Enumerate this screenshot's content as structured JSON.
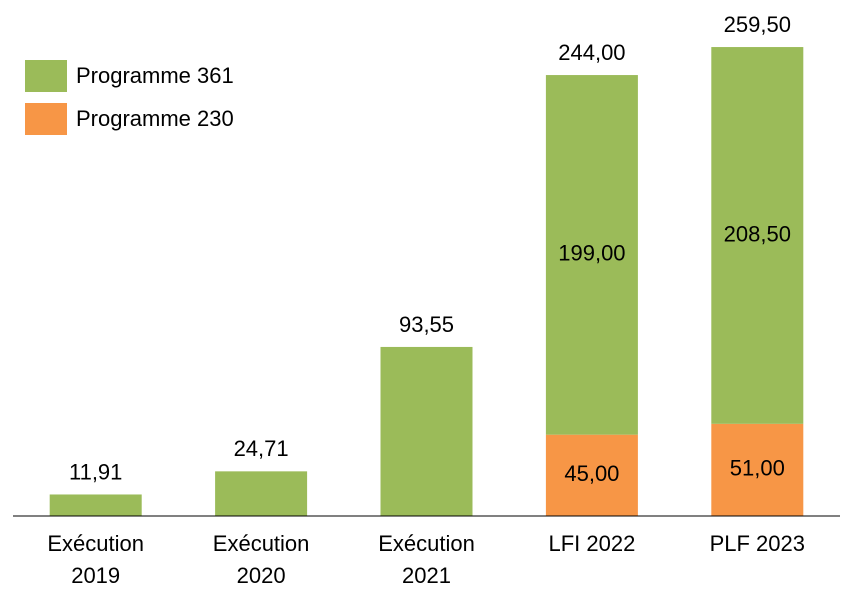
{
  "chart_data": {
    "type": "stacked-bar",
    "categories": [
      "Exécution 2019",
      "Exécution 2020",
      "Exécution 2021",
      "LFI 2022",
      "PLF 2023"
    ],
    "series": [
      {
        "name": "Programme 230",
        "color": "#f79646",
        "values": [
          null,
          null,
          null,
          45,
          51
        ],
        "value_labels": [
          null,
          null,
          null,
          "45,00",
          "51,00"
        ]
      },
      {
        "name": "Programme 361",
        "color": "#9bbb59",
        "values": [
          11.91,
          24.71,
          93.55,
          199,
          208.5
        ],
        "value_labels": [
          "11,91",
          "24,71",
          "93,55",
          "199,00",
          "208,50"
        ]
      }
    ],
    "totals": [
      null,
      null,
      null,
      244,
      259.5
    ],
    "total_labels": [
      null,
      null,
      null,
      "244,00",
      "259,50"
    ],
    "ylim": [
      0,
      280
    ],
    "legend": "top-left"
  }
}
